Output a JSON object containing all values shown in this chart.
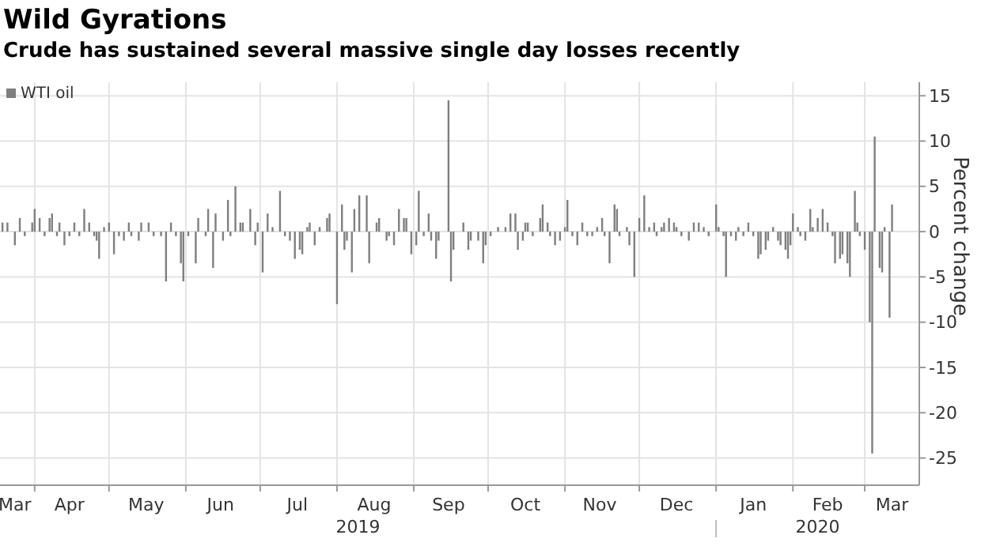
{
  "chart_data": {
    "type": "bar",
    "title": "Wild Gyrations",
    "subtitle": "Crude has sustained several massive single day losses recently",
    "ylabel": "Percent change",
    "legend": "top left",
    "grid": true,
    "ylim": [
      -28,
      16.5
    ],
    "yticks": [
      15,
      10,
      5,
      0,
      -5,
      -10,
      -15,
      -20,
      -25
    ],
    "xlim": [
      "2019-03-18",
      "2020-03-23"
    ],
    "xticks": [
      {
        "value": "2019-03-24",
        "label": "Mar"
      },
      {
        "value": "2019-04-01",
        "label": null
      },
      {
        "value": "2019-04-15",
        "label": "Apr"
      },
      {
        "value": "2019-05-01",
        "label": null
      },
      {
        "value": "2019-05-16",
        "label": "May"
      },
      {
        "value": "2019-06-01",
        "label": null
      },
      {
        "value": "2019-06-15",
        "label": "Jun"
      },
      {
        "value": "2019-07-01",
        "label": null
      },
      {
        "value": "2019-07-16",
        "label": "Jul"
      },
      {
        "value": "2019-08-01",
        "label": null
      },
      {
        "value": "2019-08-16",
        "label": "Aug"
      },
      {
        "value": "2019-09-01",
        "label": null
      },
      {
        "value": "2019-09-15",
        "label": "Sep"
      },
      {
        "value": "2019-10-01",
        "label": null
      },
      {
        "value": "2019-10-16",
        "label": "Oct"
      },
      {
        "value": "2019-11-01",
        "label": null
      },
      {
        "value": "2019-11-15",
        "label": "Nov"
      },
      {
        "value": "2019-12-01",
        "label": null
      },
      {
        "value": "2019-12-16",
        "label": "Dec"
      },
      {
        "value": "2020-01-01",
        "label": null
      },
      {
        "value": "2020-01-16",
        "label": "Jan"
      },
      {
        "value": "2020-02-01",
        "label": null
      },
      {
        "value": "2020-02-15",
        "label": "Feb"
      },
      {
        "value": "2020-03-01",
        "label": null
      },
      {
        "value": "2020-03-12",
        "label": "Mar"
      }
    ],
    "annotations": [
      "2019",
      "2020"
    ],
    "series": [
      {
        "name": "WTI oil",
        "color": "#7f7f7f",
        "x": [
          "2019-03-19",
          "2019-03-21",
          "2019-03-24",
          "2019-03-26",
          "2019-03-28",
          "2019-03-31",
          "2019-04-01",
          "2019-04-03",
          "2019-04-05",
          "2019-04-07",
          "2019-04-08",
          "2019-04-10",
          "2019-04-11",
          "2019-04-13",
          "2019-04-15",
          "2019-04-17",
          "2019-04-19",
          "2019-04-21",
          "2019-04-23",
          "2019-04-25",
          "2019-04-26",
          "2019-04-27",
          "2019-04-29",
          "2019-05-01",
          "2019-05-03",
          "2019-05-05",
          "2019-05-07",
          "2019-05-09",
          "2019-05-10",
          "2019-05-13",
          "2019-05-14",
          "2019-05-17",
          "2019-05-19",
          "2019-05-22",
          "2019-05-24",
          "2019-05-26",
          "2019-05-28",
          "2019-05-30",
          "2019-05-31",
          "2019-06-02",
          "2019-06-05",
          "2019-06-06",
          "2019-06-09",
          "2019-06-10",
          "2019-06-12",
          "2019-06-13",
          "2019-06-16",
          "2019-06-18",
          "2019-06-19",
          "2019-06-21",
          "2019-06-23",
          "2019-06-24",
          "2019-06-27",
          "2019-06-29",
          "2019-06-30",
          "2019-07-02",
          "2019-07-04",
          "2019-07-06",
          "2019-07-09",
          "2019-07-11",
          "2019-07-13",
          "2019-07-15",
          "2019-07-17",
          "2019-07-18",
          "2019-07-20",
          "2019-07-21",
          "2019-07-23",
          "2019-07-25",
          "2019-07-28",
          "2019-07-29",
          "2019-08-01",
          "2019-08-03",
          "2019-08-04",
          "2019-08-05",
          "2019-08-07",
          "2019-08-08",
          "2019-08-10",
          "2019-08-13",
          "2019-08-14",
          "2019-08-17",
          "2019-08-18",
          "2019-08-21",
          "2019-08-22",
          "2019-08-24",
          "2019-08-26",
          "2019-08-28",
          "2019-08-29",
          "2019-08-31",
          "2019-09-02",
          "2019-09-03",
          "2019-09-05",
          "2019-09-07",
          "2019-09-08",
          "2019-09-10",
          "2019-09-11",
          "2019-09-15",
          "2019-09-16",
          "2019-09-17",
          "2019-09-21",
          "2019-09-23",
          "2019-09-24",
          "2019-09-27",
          "2019-09-29",
          "2019-09-30",
          "2019-10-02",
          "2019-10-05",
          "2019-10-08",
          "2019-10-10",
          "2019-10-12",
          "2019-10-13",
          "2019-10-15",
          "2019-10-16",
          "2019-10-17",
          "2019-10-19",
          "2019-10-22",
          "2019-10-23",
          "2019-10-25",
          "2019-10-26",
          "2019-10-28",
          "2019-10-30",
          "2019-11-01",
          "2019-11-02",
          "2019-11-04",
          "2019-11-06",
          "2019-11-08",
          "2019-11-10",
          "2019-11-12",
          "2019-11-14",
          "2019-11-16",
          "2019-11-17",
          "2019-11-19",
          "2019-11-21",
          "2019-11-22",
          "2019-11-23",
          "2019-11-26",
          "2019-11-27",
          "2019-11-29",
          "2019-12-01",
          "2019-12-03",
          "2019-12-05",
          "2019-12-07",
          "2019-12-08",
          "2019-12-10",
          "2019-12-11",
          "2019-12-13",
          "2019-12-15",
          "2019-12-16",
          "2019-12-18",
          "2019-12-21",
          "2019-12-23",
          "2019-12-25",
          "2019-12-27",
          "2019-12-29",
          "2020-01-01",
          "2020-01-02",
          "2020-01-04",
          "2020-01-05",
          "2020-01-07",
          "2020-01-09",
          "2020-01-10",
          "2020-01-12",
          "2020-01-14",
          "2020-01-16",
          "2020-01-18",
          "2020-01-19",
          "2020-01-21",
          "2020-01-22",
          "2020-01-24",
          "2020-01-26",
          "2020-01-27",
          "2020-01-29",
          "2020-01-30",
          "2020-01-31",
          "2020-02-01",
          "2020-02-03",
          "2020-02-04",
          "2020-02-06",
          "2020-02-08",
          "2020-02-09",
          "2020-02-11",
          "2020-02-13",
          "2020-02-15",
          "2020-02-17",
          "2020-02-18",
          "2020-02-20",
          "2020-02-21",
          "2020-02-23",
          "2020-02-24",
          "2020-02-26",
          "2020-02-27",
          "2020-02-28",
          "2020-03-01",
          "2020-03-03",
          "2020-03-04",
          "2020-03-05",
          "2020-03-07",
          "2020-03-08",
          "2020-03-09",
          "2020-03-11",
          "2020-03-12"
        ],
        "values": [
          1,
          1,
          -1.5,
          1.5,
          -0.5,
          1,
          2.5,
          1.5,
          -0.5,
          1.5,
          2,
          -0.5,
          1,
          -1.5,
          -0.5,
          1,
          -0.5,
          2.5,
          1,
          -0.5,
          -1,
          -3,
          0.5,
          1,
          -2.5,
          -0.5,
          -1,
          1,
          -0.5,
          -1,
          1,
          1,
          -0.5,
          -0.5,
          -5.5,
          1,
          -0.5,
          -3.5,
          -5.5,
          -0.5,
          -3.5,
          1.5,
          -0.5,
          2.5,
          -4,
          2,
          -1,
          3.5,
          -0.5,
          5,
          1,
          1,
          2.5,
          -1.5,
          1,
          -4.5,
          2,
          0.5,
          4.5,
          -0.5,
          -1,
          -3,
          -2,
          -2.5,
          0.5,
          1,
          -1.5,
          0.5,
          1.5,
          2,
          -8,
          3,
          -2,
          -1,
          -4.5,
          2.5,
          4,
          4,
          -3.5,
          1,
          1.5,
          -1,
          -0.5,
          -1.5,
          2.5,
          1.5,
          1.5,
          -2.5,
          -1.5,
          4.5,
          -0.5,
          2,
          -1,
          -3,
          -1,
          14.5,
          -5.5,
          -2,
          1,
          -2,
          -1,
          -1,
          -3.5,
          -1.5,
          -0.5,
          0.5,
          0.5,
          2,
          2,
          -2,
          -1,
          1,
          1,
          -0.5,
          1.5,
          3,
          1,
          -0.5,
          -1.5,
          -1,
          0.5,
          3.5,
          -0.5,
          -1.5,
          1,
          -0.5,
          -0.5,
          0.5,
          1.5,
          -0.5,
          -3.5,
          3,
          2.5,
          -0.5,
          0.5,
          -1.5,
          -5,
          1.5,
          4,
          0.5,
          1,
          -0.5,
          0.5,
          1,
          1.5,
          1,
          0.5,
          -0.5,
          -1,
          1,
          1,
          0.5,
          -0.5,
          3,
          0.5,
          -0.5,
          -5,
          -0.5,
          -1,
          0.5,
          -0.5,
          1,
          -0.5,
          -3,
          -2.5,
          -2,
          -1,
          0.5,
          -1,
          -1.5,
          -2,
          -3,
          -1.5,
          2,
          0.5,
          -0.5,
          -1,
          2.5,
          0.5,
          1.5,
          2.5,
          1,
          -0.5,
          -3.5,
          -3,
          -2.5,
          -3.5,
          -5,
          4.5,
          1,
          -0.5,
          -2,
          -10,
          -24.5,
          10.5,
          -4,
          -4.5,
          0.5,
          -9.5,
          3
        ]
      }
    ]
  }
}
